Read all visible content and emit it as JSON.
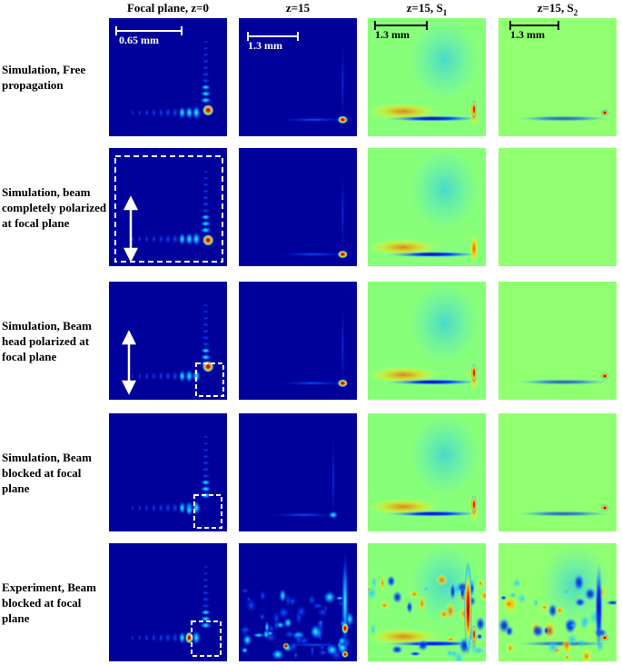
{
  "figure": {
    "columns": [
      {
        "text": "Focal plane, z=0"
      },
      {
        "text": "z=15"
      },
      {
        "text": "z=15, S",
        "sub": "1"
      },
      {
        "text": "z=15, S",
        "sub": "2"
      }
    ],
    "rows": [
      "Simulation, Free propagation",
      "Simulation, beam completely polarized at focal plane",
      "Simulation, Beam head polarized at focal plane",
      "Simulation, Beam blocked at focal plane",
      "Experiment, Beam blocked at focal plane"
    ],
    "scale_bars": [
      "0.65 mm",
      "1.3 mm",
      "1.3 mm",
      "1.3 mm"
    ]
  }
}
